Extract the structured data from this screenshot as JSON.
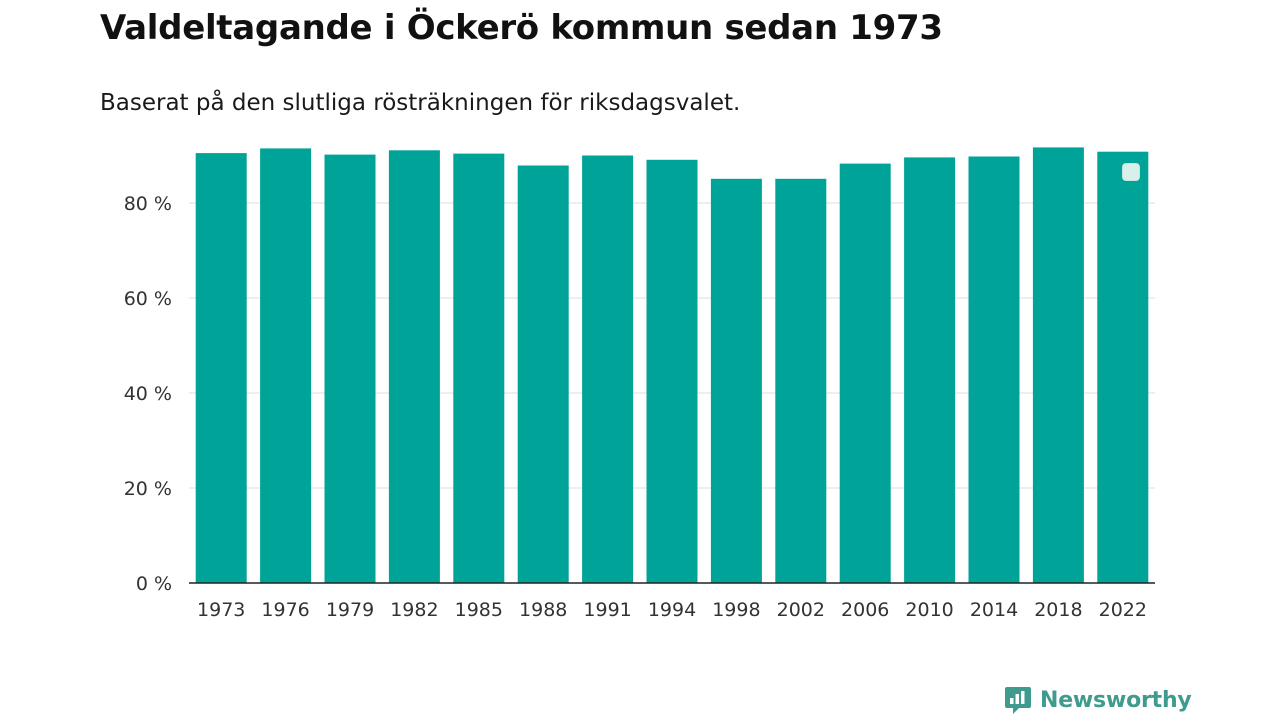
{
  "title": "Valdeltagande i Öckerö kommun sedan 1973",
  "subtitle": "Baserat på den slutliga rösträkningen för riksdagsvalet.",
  "brand": {
    "name": "Newsworthy",
    "icon": "newsworthy-logo-icon"
  },
  "colors": {
    "bar": "#00a398",
    "brand": "#3e9b8e",
    "grid": "#dddddd",
    "axis": "#222222"
  },
  "chart_data": {
    "type": "bar",
    "categories": [
      "1973",
      "1976",
      "1979",
      "1982",
      "1985",
      "1988",
      "1991",
      "1994",
      "1998",
      "2002",
      "2006",
      "2010",
      "2014",
      "2018",
      "2022"
    ],
    "series": [
      {
        "values": [
          90.5,
          91.5,
          90.2,
          91.1,
          90.4,
          87.9,
          90.0,
          89.1,
          85.1,
          85.1,
          88.3,
          89.6,
          89.8,
          91.7,
          90.8
        ]
      }
    ],
    "yticks": [
      "0 %",
      "20 %",
      "40 %",
      "60 %",
      "80 %"
    ],
    "ytick_values": [
      0,
      20,
      40,
      60,
      80
    ],
    "ylim": [
      0,
      92
    ],
    "grid": true,
    "legend": "top-right"
  }
}
